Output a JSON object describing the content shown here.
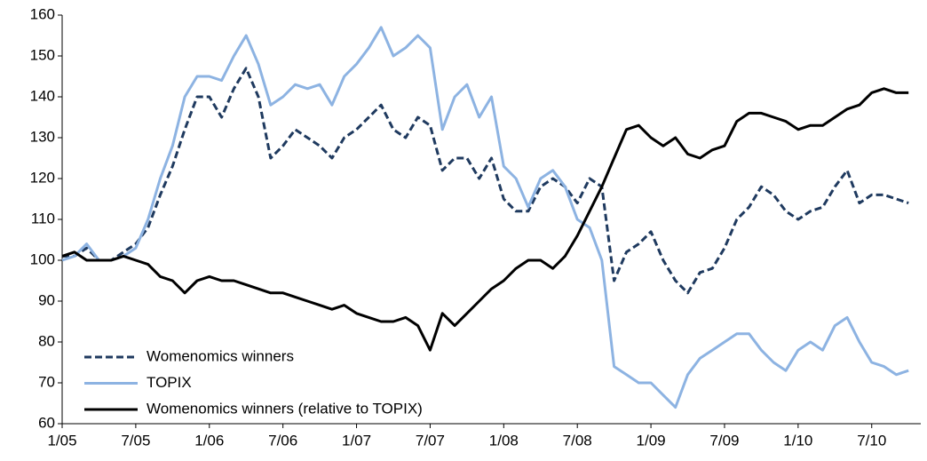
{
  "chart_data": {
    "type": "line",
    "x": [
      "2005-01",
      "2005-02",
      "2005-03",
      "2005-04",
      "2005-05",
      "2005-06",
      "2005-07",
      "2005-08",
      "2005-09",
      "2005-10",
      "2005-11",
      "2005-12",
      "2006-01",
      "2006-02",
      "2006-03",
      "2006-04",
      "2006-05",
      "2006-06",
      "2006-07",
      "2006-08",
      "2006-09",
      "2006-10",
      "2006-11",
      "2006-12",
      "2007-01",
      "2007-02",
      "2007-03",
      "2007-04",
      "2007-05",
      "2007-06",
      "2007-07",
      "2007-08",
      "2007-09",
      "2007-10",
      "2007-11",
      "2007-12",
      "2008-01",
      "2008-02",
      "2008-03",
      "2008-04",
      "2008-05",
      "2008-06",
      "2008-07",
      "2008-08",
      "2008-09",
      "2008-10",
      "2008-11",
      "2008-12",
      "2009-01",
      "2009-02",
      "2009-03",
      "2009-04",
      "2009-05",
      "2009-06",
      "2009-07",
      "2009-08",
      "2009-09",
      "2009-10",
      "2009-11",
      "2009-12",
      "2010-01",
      "2010-02",
      "2010-03",
      "2010-04",
      "2010-05",
      "2010-06",
      "2010-07",
      "2010-08",
      "2010-09",
      "2010-10"
    ],
    "series": [
      {
        "name": "Womenomics winners",
        "color": "#1f3a5f",
        "dashed": true,
        "values": [
          101,
          101,
          103,
          100,
          100,
          102,
          104,
          108,
          116,
          123,
          132,
          140,
          140,
          135,
          142,
          147,
          140,
          125,
          128,
          132,
          130,
          128,
          125,
          130,
          132,
          135,
          138,
          132,
          130,
          135,
          133,
          122,
          125,
          125,
          120,
          125,
          115,
          112,
          112,
          118,
          120,
          118,
          114,
          120,
          118,
          95,
          102,
          104,
          107,
          100,
          95,
          92,
          97,
          98,
          103,
          110,
          113,
          118,
          116,
          112,
          110,
          112,
          113,
          118,
          122,
          114,
          116,
          116,
          115,
          114
        ]
      },
      {
        "name": "TOPIX",
        "color": "#8db3e2",
        "dashed": false,
        "values": [
          100,
          101,
          104,
          100,
          100,
          101,
          103,
          110,
          120,
          128,
          140,
          145,
          145,
          144,
          150,
          155,
          148,
          138,
          140,
          143,
          142,
          143,
          138,
          145,
          148,
          152,
          157,
          150,
          152,
          155,
          152,
          132,
          140,
          143,
          135,
          140,
          123,
          120,
          113,
          120,
          122,
          118,
          110,
          108,
          100,
          74,
          72,
          70,
          70,
          67,
          64,
          72,
          76,
          78,
          80,
          82,
          82,
          78,
          75,
          73,
          78,
          80,
          78,
          84,
          86,
          80,
          75,
          74,
          72,
          73
        ]
      },
      {
        "name": "Womenomics winners (relative to TOPIX)",
        "color": "#000000",
        "dashed": false,
        "values": [
          101,
          102,
          100,
          100,
          100,
          101,
          100,
          99,
          96,
          95,
          92,
          95,
          96,
          95,
          95,
          94,
          93,
          92,
          92,
          91,
          90,
          89,
          88,
          89,
          87,
          86,
          85,
          85,
          86,
          84,
          78,
          87,
          84,
          87,
          90,
          93,
          95,
          98,
          100,
          100,
          98,
          101,
          106,
          112,
          118,
          125,
          132,
          133,
          130,
          128,
          130,
          126,
          125,
          127,
          128,
          134,
          136,
          136,
          135,
          134,
          132,
          133,
          133,
          135,
          137,
          138,
          141,
          142,
          141,
          141
        ]
      }
    ],
    "xlim": [
      "2005-01",
      "2010-11"
    ],
    "xticks": [
      {
        "value": "2005-01",
        "label": "1/05"
      },
      {
        "value": "2005-07",
        "label": "7/05"
      },
      {
        "value": "2006-01",
        "label": "1/06"
      },
      {
        "value": "2006-07",
        "label": "7/06"
      },
      {
        "value": "2007-01",
        "label": "1/07"
      },
      {
        "value": "2007-07",
        "label": "7/07"
      },
      {
        "value": "2008-01",
        "label": "1/08"
      },
      {
        "value": "2008-07",
        "label": "7/08"
      },
      {
        "value": "2009-01",
        "label": "1/09"
      },
      {
        "value": "2009-07",
        "label": "7/09"
      },
      {
        "value": "2010-01",
        "label": "1/10"
      },
      {
        "value": "2010-07",
        "label": "7/10"
      }
    ],
    "ylim": [
      60,
      160
    ],
    "yticks": [
      60,
      70,
      80,
      90,
      100,
      110,
      120,
      130,
      140,
      150,
      160
    ],
    "legend": "lower left"
  }
}
